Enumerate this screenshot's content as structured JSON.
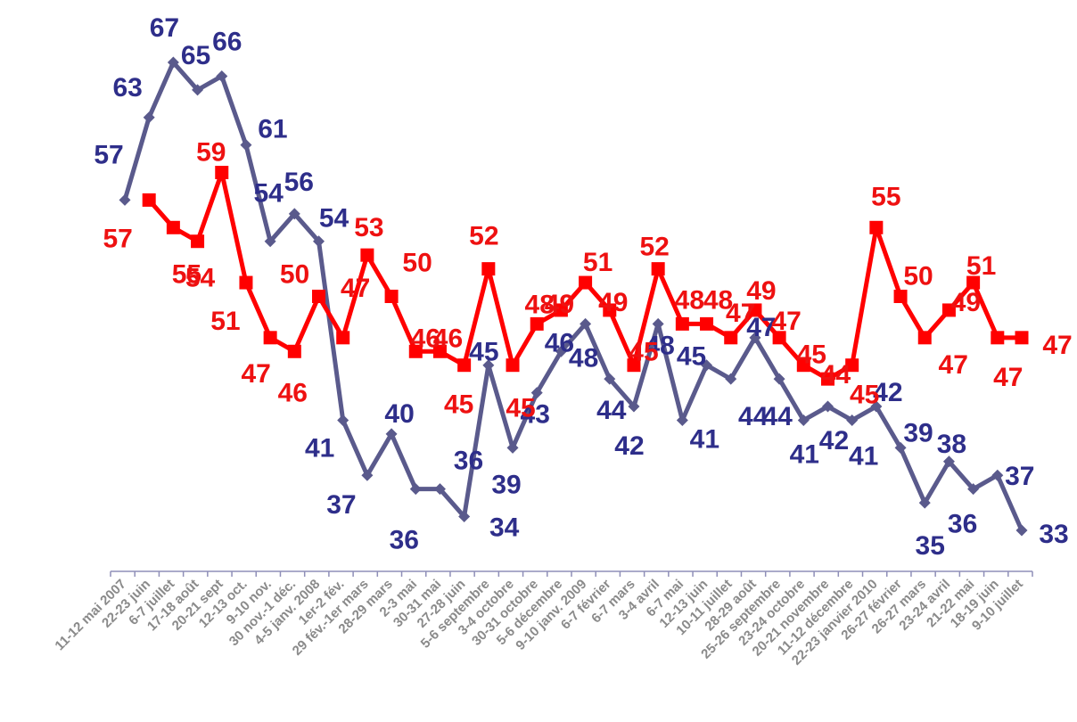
{
  "chart_data": {
    "type": "line",
    "categories": [
      "11-12 mai 2007",
      "22-23 juin",
      "6-7 juillet",
      "17-18 août",
      "20-21 sept",
      "12-13 oct.",
      "9-10 nov.",
      "30 nov.-1 déc.",
      "4-5 janv. 2008",
      "1er-2 fév.",
      "29 fév.-1er mars",
      "28-29 mars",
      "2-3 mai",
      "30-31 mai",
      "27-28 juin",
      "5-6 septembre",
      "3-4 octobre",
      "30-31 octobre",
      "5-6 décembre",
      "9-10 janv. 2009",
      "6-7 février",
      "6-7 mars",
      "3-4 avril",
      "6-7 mai",
      "12-13 juin",
      "10-11 juillet",
      "28-29 août",
      "25-26 septembre",
      "23-24 octobre",
      "20-21 novembre",
      "11-12 décembre",
      "22-23 janvier 2010",
      "26-27 février",
      "26-27 mars",
      "23-24 avril",
      "21-22 mai",
      "18-19 juin",
      "9-10 juillet"
    ],
    "series": [
      {
        "color": "#5a5a8c",
        "label_color": "#2e2e8a",
        "marker": "diamond",
        "values": [
          57,
          63,
          67,
          65,
          66,
          61,
          54,
          56,
          54,
          41,
          37,
          40,
          36,
          36,
          34,
          45,
          39,
          43,
          46,
          48,
          44,
          42,
          48,
          41,
          45,
          44,
          47,
          44,
          41,
          42,
          41,
          42,
          39,
          35,
          38,
          36,
          37,
          33
        ]
      },
      {
        "color": "#ff0000",
        "label_color": "#ee1111",
        "marker": "square",
        "values": [
          null,
          57,
          55,
          54,
          59,
          51,
          47,
          46,
          50,
          47,
          53,
          50,
          46,
          46,
          45,
          52,
          45,
          48,
          49,
          51,
          49,
          45,
          52,
          48,
          48,
          47,
          49,
          47,
          45,
          44,
          45,
          55,
          50,
          47,
          49,
          51,
          47,
          47
        ]
      }
    ],
    "ylim": [
      27,
      72
    ],
    "grid": false,
    "legend": "none"
  }
}
